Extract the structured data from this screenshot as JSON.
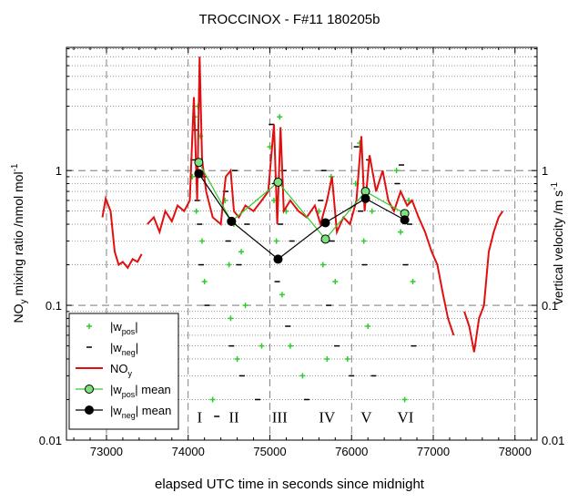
{
  "chart_data": {
    "type": "line-scatter",
    "title": "TROCCINOX - F#11 180205b",
    "xlabel": "elapsed UTC time in seconds since midnight",
    "ylabel": {
      "main": "NO",
      "sub": "y",
      "rest": " mixing ratio /nmol mol",
      "sup": "-1"
    },
    "y2label": {
      "main": "vertical velocity /m s",
      "sup": "-1"
    },
    "xlim": [
      72510,
      78270
    ],
    "xticks": [
      73000,
      74000,
      75000,
      76000,
      77000,
      78000
    ],
    "xminor": [
      72600,
      72800,
      73200,
      73400,
      73600,
      73800,
      74200,
      74400,
      74600,
      74800,
      75200,
      75400,
      75600,
      75800,
      76200,
      76400,
      76600,
      76800,
      77200,
      77400,
      77600,
      77800,
      78200
    ],
    "ylim": [
      0.01,
      8.2
    ],
    "yticks": [
      0.01,
      0.1,
      1
    ],
    "y2lim": [
      0.01,
      8.2
    ],
    "y2ticks": [
      0.01,
      0.1,
      1
    ],
    "yminor": [
      0.02,
      0.03,
      0.04,
      0.05,
      0.06,
      0.07,
      0.08,
      0.09,
      0.2,
      0.3,
      0.4,
      0.5,
      0.6,
      0.7,
      0.8,
      0.9,
      2,
      3,
      4,
      5,
      6,
      7,
      8
    ],
    "log_y": true,
    "grid": true,
    "legend": "lower left",
    "series": [
      {
        "name": "|w",
        "name_sub": "pos",
        "name_tail": "|",
        "color": "#2ecc2e",
        "style": "plus",
        "x": [
          74050,
          74080,
          74100,
          74120,
          74150,
          74170,
          74200,
          74450,
          74500,
          74520,
          74560,
          74600,
          74650,
          74700,
          75000,
          75050,
          75080,
          75120,
          75150,
          75200,
          75250,
          75600,
          75650,
          75700,
          75750,
          75800,
          76050,
          76100,
          76150,
          76200,
          76250,
          76550,
          76600,
          76650,
          76700,
          76750,
          74300,
          74900,
          75400,
          75950
        ],
        "values": [
          0.9,
          2.5,
          0.5,
          3,
          1.8,
          0.3,
          0.15,
          0.6,
          0.2,
          0.08,
          0.4,
          0.04,
          0.25,
          0.1,
          1.5,
          0.6,
          0.3,
          2.5,
          0.12,
          0.5,
          0.05,
          0.5,
          0.2,
          0.04,
          0.9,
          0.15,
          0.8,
          1.6,
          0.3,
          0.07,
          0.5,
          1.0,
          0.35,
          0.02,
          0.6,
          0.15,
          0.02,
          0.05,
          0.03,
          0.04
        ]
      },
      {
        "name": "|w",
        "name_sub": "neg",
        "name_tail": "|",
        "color": "#000000",
        "style": "dash",
        "x": [
          74060,
          74090,
          74110,
          74140,
          74160,
          74190,
          74230,
          74460,
          74490,
          74530,
          74570,
          74620,
          74660,
          74720,
          75020,
          75060,
          75090,
          75130,
          75170,
          75220,
          75270,
          75620,
          75660,
          75720,
          75760,
          75820,
          76060,
          76110,
          76160,
          76210,
          76270,
          76560,
          76610,
          76660,
          76710,
          76760,
          74350,
          74850,
          75450,
          76000
        ],
        "values": [
          1.2,
          2,
          0.6,
          0.4,
          0.2,
          0.9,
          0.1,
          0.7,
          0.3,
          0.05,
          1.0,
          0.2,
          0.03,
          0.4,
          2.2,
          0.8,
          0.15,
          0.4,
          1.0,
          0.07,
          0.3,
          0.6,
          1.0,
          0.1,
          0.3,
          0.05,
          1.5,
          0.5,
          0.2,
          1.2,
          0.03,
          0.8,
          1.1,
          0.2,
          0.4,
          0.05,
          0.015,
          0.02,
          0.02,
          0.03
        ]
      },
      {
        "name": "NO",
        "name_sub": "y",
        "color": "#e01010",
        "style": "line",
        "x": [
          72950,
          72990,
          73050,
          73100,
          73150,
          73200,
          73260,
          73320,
          73380,
          73430,
          73470,
          73500,
          73580,
          73650,
          73720,
          73800,
          73870,
          73950,
          74020,
          74070,
          74110,
          74140,
          74170,
          74220,
          74300,
          74400,
          74460,
          74520,
          74560,
          74620,
          74700,
          74800,
          74900,
          74980,
          75050,
          75090,
          75130,
          75170,
          75250,
          75350,
          75450,
          75550,
          75620,
          75700,
          75760,
          75820,
          75900,
          75980,
          76060,
          76120,
          76160,
          76220,
          76300,
          76380,
          76450,
          76520,
          76600,
          76680,
          76740,
          76820,
          76900,
          76980,
          77050,
          77120,
          77180,
          77250,
          77300,
          77380,
          77440,
          77500,
          77560,
          77620,
          77680,
          77740,
          77800,
          77850
        ],
        "values": [
          0.45,
          0.62,
          0.5,
          0.25,
          0.2,
          0.21,
          0.19,
          0.22,
          0.21,
          0.24,
          null,
          0.4,
          0.45,
          0.35,
          0.5,
          0.42,
          0.55,
          0.5,
          0.6,
          3.5,
          0.6,
          7,
          1.2,
          0.7,
          0.45,
          0.4,
          0.9,
          1.0,
          0.5,
          0.45,
          0.55,
          0.5,
          0.6,
          0.7,
          2.2,
          0.4,
          2.1,
          0.5,
          0.6,
          0.5,
          0.45,
          0.55,
          0.4,
          0.6,
          0.9,
          0.35,
          0.45,
          0.4,
          0.6,
          1.8,
          0.5,
          1.3,
          0.7,
          1.0,
          0.6,
          0.5,
          0.7,
          0.55,
          0.6,
          0.45,
          0.35,
          0.25,
          0.2,
          0.12,
          0.08,
          0.06,
          null,
          0.09,
          0.07,
          0.045,
          0.08,
          0.1,
          0.25,
          0.35,
          0.45,
          0.5
        ]
      },
      {
        "name": "|w",
        "name_sub": "pos",
        "name_tail": "| mean",
        "color": "#2ecc2e",
        "style": "line-marker",
        "marker_fill": "#7ee07e",
        "x": [
          74130,
          74530,
          75100,
          75680,
          76170,
          76650
        ],
        "values": [
          1.15,
          0.42,
          0.82,
          0.31,
          0.7,
          0.48
        ]
      },
      {
        "name": "|w",
        "name_sub": "neg",
        "name_tail": "| mean",
        "color": "#000000",
        "style": "line-marker",
        "marker_fill": "#000000",
        "x": [
          74130,
          74530,
          75100,
          75680,
          76170,
          76650
        ],
        "values": [
          0.95,
          0.42,
          0.22,
          0.41,
          0.62,
          0.43
        ]
      }
    ],
    "annotations": [
      {
        "text": "I",
        "x": 74140,
        "y": 0.0135
      },
      {
        "text": "II",
        "x": 74560,
        "y": 0.0135
      },
      {
        "text": "III",
        "x": 75120,
        "y": 0.0135
      },
      {
        "text": "IV",
        "x": 75700,
        "y": 0.0135
      },
      {
        "text": "V",
        "x": 76180,
        "y": 0.0135
      },
      {
        "text": "VI",
        "x": 76660,
        "y": 0.0135
      }
    ]
  }
}
